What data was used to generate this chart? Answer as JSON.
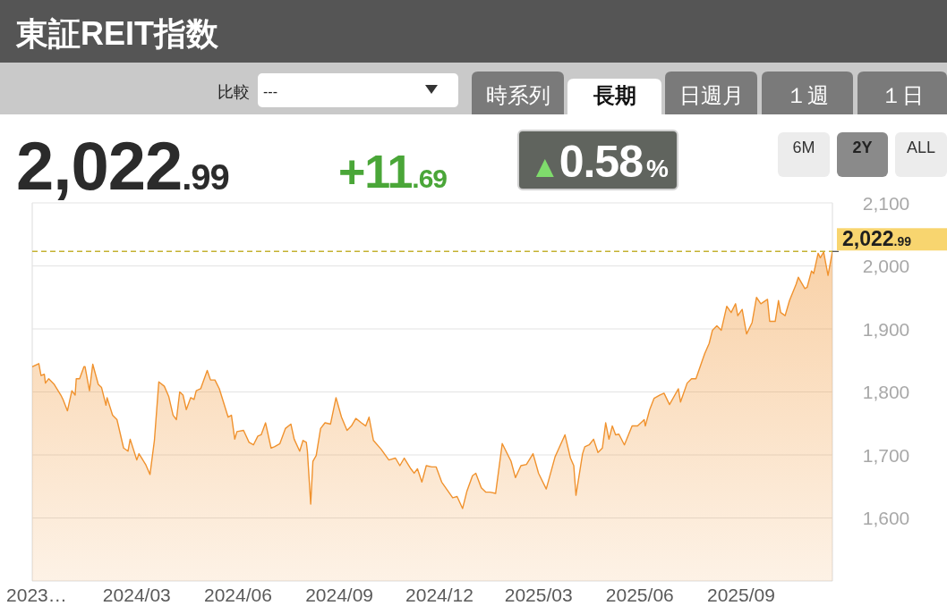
{
  "chart_data": {
    "type": "area",
    "title": "東証REIT指数",
    "color": "#f0922e",
    "x": [
      "2023-11-27",
      "2023-12-03",
      "2023-12-05",
      "2023-12-08",
      "2023-12-09",
      "2023-12-12",
      "2023-12-17",
      "2023-12-23",
      "2023-12-25",
      "2023-12-29",
      "2024-01-02",
      "2024-01-05",
      "2024-01-06",
      "2024-01-09",
      "2024-01-13",
      "2024-01-14",
      "2024-01-18",
      "2024-01-21",
      "2024-01-26",
      "2024-01-29",
      "2024-02-02",
      "2024-02-03",
      "2024-02-08",
      "2024-02-12",
      "2024-02-18",
      "2024-02-22",
      "2024-02-24",
      "2024-03-01",
      "2024-03-03",
      "2024-03-09",
      "2024-03-13",
      "2024-03-17",
      "2024-03-21",
      "2024-03-26",
      "2024-03-30",
      "2024-04-03",
      "2024-04-06",
      "2024-04-09",
      "2024-04-12",
      "2024-04-15",
      "2024-04-19",
      "2024-04-22",
      "2024-04-24",
      "2024-04-28",
      "2024-05-04",
      "2024-05-07",
      "2024-05-11",
      "2024-05-15",
      "2024-05-23",
      "2024-05-26",
      "2024-05-29",
      "2024-05-31",
      "2024-06-06",
      "2024-06-11",
      "2024-06-15",
      "2024-06-19",
      "2024-06-22",
      "2024-06-26",
      "2024-07-01",
      "2024-07-04",
      "2024-07-09",
      "2024-07-14",
      "2024-07-19",
      "2024-07-22",
      "2024-07-27",
      "2024-07-30",
      "2024-08-02",
      "2024-08-03",
      "2024-08-06",
      "2024-08-08",
      "2024-08-11",
      "2024-08-15",
      "2024-08-19",
      "2024-08-24",
      "2024-08-29",
      "2024-09-03",
      "2024-09-08",
      "2024-09-12",
      "2024-09-16",
      "2024-09-21",
      "2024-09-25",
      "2024-09-28",
      "2024-10-02",
      "2024-10-09",
      "2024-10-16",
      "2024-10-22",
      "2024-10-26",
      "2024-10-30",
      "2024-11-05",
      "2024-11-08",
      "2024-11-11",
      "2024-11-15",
      "2024-11-19",
      "2024-11-24",
      "2024-11-28",
      "2024-12-03",
      "2024-12-13",
      "2024-12-17",
      "2024-12-22",
      "2024-12-26",
      "2024-12-31",
      "2025-01-03",
      "2025-01-08",
      "2025-01-12",
      "2025-01-16",
      "2025-01-21",
      "2025-01-27",
      "2025-02-04",
      "2025-02-08",
      "2025-02-13",
      "2025-02-18",
      "2025-02-24",
      "2025-03-01",
      "2025-03-08",
      "2025-03-16",
      "2025-03-25",
      "2025-03-30",
      "2025-04-02",
      "2025-04-04",
      "2025-04-07",
      "2025-04-10",
      "2025-04-12",
      "2025-04-16",
      "2025-04-20",
      "2025-04-24",
      "2025-04-28",
      "2025-05-01",
      "2025-05-04",
      "2025-05-07",
      "2025-05-10",
      "2025-05-13",
      "2025-05-18",
      "2025-05-25",
      "2025-05-30",
      "2025-06-05",
      "2025-06-06",
      "2025-06-10",
      "2025-06-14",
      "2025-06-19",
      "2025-06-23",
      "2025-06-28",
      "2025-07-06",
      "2025-07-08",
      "2025-07-14",
      "2025-07-18",
      "2025-07-22",
      "2025-07-28",
      "2025-07-30",
      "2025-08-03",
      "2025-08-06",
      "2025-08-10",
      "2025-08-14",
      "2025-08-19",
      "2025-08-23",
      "2025-08-27",
      "2025-08-29",
      "2025-09-02",
      "2025-09-06",
      "2025-09-11",
      "2025-09-15",
      "2025-09-19",
      "2025-09-25",
      "2025-09-27",
      "2025-10-02",
      "2025-10-05",
      "2025-10-07",
      "2025-10-11",
      "2025-10-15",
      "2025-10-21",
      "2025-10-23",
      "2025-10-26",
      "2025-10-29",
      "2025-10-31",
      "2025-11-04",
      "2025-11-06",
      "2025-11-10",
      "2025-11-12",
      "2025-11-15",
      "2025-11-19",
      "2025-11-23"
    ],
    "values": [
      1840,
      1845,
      1826,
      1828,
      1814,
      1821,
      1812,
      1795,
      1788,
      1770,
      1802,
      1795,
      1821,
      1821,
      1840,
      1840,
      1802,
      1844,
      1812,
      1807,
      1779,
      1791,
      1763,
      1756,
      1711,
      1706,
      1725,
      1692,
      1702,
      1685,
      1669,
      1723,
      1816,
      1809,
      1793,
      1763,
      1756,
      1800,
      1795,
      1772,
      1791,
      1788,
      1802,
      1805,
      1834,
      1819,
      1819,
      1805,
      1760,
      1763,
      1725,
      1737,
      1739,
      1720,
      1716,
      1730,
      1732,
      1751,
      1711,
      1713,
      1718,
      1742,
      1749,
      1725,
      1706,
      1723,
      1720,
      1706,
      1622,
      1690,
      1699,
      1742,
      1751,
      1749,
      1791,
      1760,
      1739,
      1746,
      1758,
      1751,
      1746,
      1760,
      1723,
      1709,
      1692,
      1695,
      1683,
      1695,
      1678,
      1671,
      1678,
      1657,
      1683,
      1681,
      1681,
      1657,
      1632,
      1634,
      1615,
      1643,
      1667,
      1671,
      1648,
      1641,
      1641,
      1639,
      1718,
      1690,
      1664,
      1683,
      1685,
      1702,
      1671,
      1646,
      1697,
      1732,
      1695,
      1683,
      1636,
      1669,
      1702,
      1713,
      1716,
      1725,
      1704,
      1711,
      1751,
      1725,
      1746,
      1732,
      1733,
      1716,
      1746,
      1746,
      1756,
      1746,
      1772,
      1790,
      1795,
      1798,
      1780,
      1805,
      1784,
      1814,
      1821,
      1821,
      1851,
      1861,
      1877,
      1898,
      1905,
      1898,
      1936,
      1926,
      1940,
      1921,
      1931,
      1892,
      1910,
      1950,
      1940,
      1947,
      1912,
      1912,
      1945,
      1926,
      1921,
      1945,
      1971,
      1982,
      1973,
      1964,
      1966,
      1992,
      1988,
      2020,
      2013,
      2022,
      1985,
      2023
    ],
    "xlim": [
      "2023-11-27",
      "2025-11-23"
    ],
    "xticks": [
      {
        "value": "2023-12-01",
        "label": "2023…"
      },
      {
        "value": "2024-03-01",
        "label": "2024/03"
      },
      {
        "value": "2024-06-01",
        "label": "2024/06"
      },
      {
        "value": "2024-09-01",
        "label": "2024/09"
      },
      {
        "value": "2024-12-01",
        "label": "2024/12"
      },
      {
        "value": "2025-03-01",
        "label": "2025/03"
      },
      {
        "value": "2025-06-01",
        "label": "2025/06"
      },
      {
        "value": "2025-09-01",
        "label": "2025/09"
      }
    ],
    "ylim": [
      1500,
      2100
    ],
    "yticks": [
      {
        "value": 1600,
        "label": "1,600"
      },
      {
        "value": 1700,
        "label": "1,700"
      },
      {
        "value": 1800,
        "label": "1,800"
      },
      {
        "value": 1900,
        "label": "1,900"
      },
      {
        "value": 2000,
        "label": "2,000"
      },
      {
        "value": 2100,
        "label": "2,100"
      }
    ],
    "grid": "y",
    "ref_lines": [
      {
        "axis": "y",
        "value": 2022.99,
        "label": "2,022.99",
        "color": "#c4b232",
        "line_style": "dashed"
      }
    ],
    "annotations": [
      "2,022.99",
      "+11.69",
      "▲0.58%",
      "比較",
      "---",
      "時系列",
      "長期",
      "日週月",
      "１週",
      "１日",
      "6M",
      "2Y",
      "ALL"
    ]
  }
}
